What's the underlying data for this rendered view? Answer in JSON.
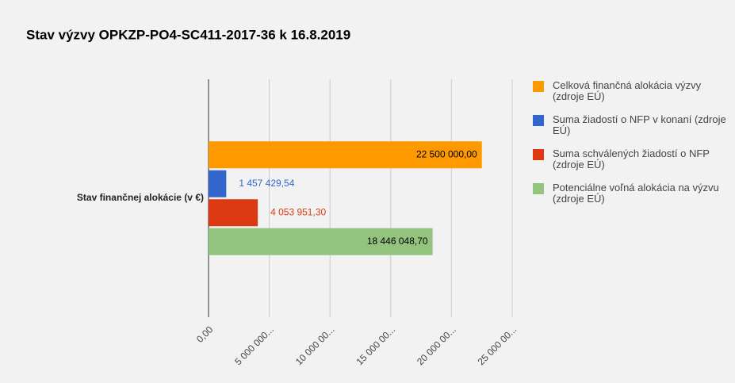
{
  "chart_data": {
    "type": "bar",
    "orientation": "horizontal",
    "title": "Stav výzvy OPKZP-PO4-SC411-2017-36 k 16.8.2019",
    "categories": [
      "Stav finančnej alokácie (v €)"
    ],
    "series": [
      {
        "name": "Celková finančná alokácia výzvy (zdroje EÚ)",
        "color": "#ff9900",
        "values": [
          22500000
        ],
        "value_labels": [
          "22 500 000,00"
        ]
      },
      {
        "name": "Suma žiadostí o NFP v konaní (zdroje EÚ)",
        "color": "#3366cc",
        "values": [
          1457429.54
        ],
        "value_labels": [
          "1 457 429,54"
        ]
      },
      {
        "name": "Suma schválených žiadostí o NFP (zdroje EÚ)",
        "color": "#dc3912",
        "values": [
          4053951.3
        ],
        "value_labels": [
          "4 053 951,30"
        ]
      },
      {
        "name": "Potenciálne voľná alokácia na výzvu (zdroje EÚ)",
        "color": "#93c47d",
        "values": [
          18446048.7
        ],
        "value_labels": [
          "18 446 048,70"
        ]
      }
    ],
    "xlim": [
      0,
      25000000
    ],
    "xticks": [
      {
        "value": 0,
        "label": "0,00"
      },
      {
        "value": 5000000,
        "label": "5 000 000..."
      },
      {
        "value": 10000000,
        "label": "10 000 00..."
      },
      {
        "value": 15000000,
        "label": "15 000 00..."
      },
      {
        "value": 20000000,
        "label": "20 000 00..."
      },
      {
        "value": 25000000,
        "label": "25 000 00..."
      }
    ],
    "grid": true,
    "legend": "right"
  }
}
